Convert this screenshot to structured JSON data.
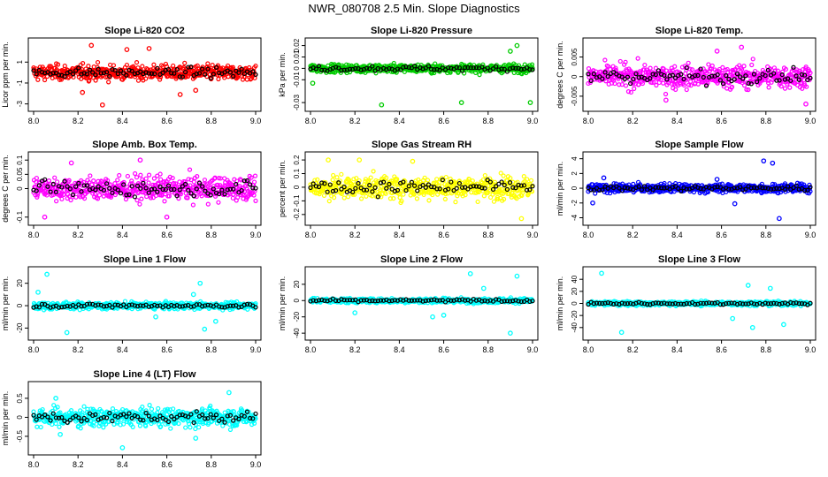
{
  "page": {
    "title": "NWR_080708  2.5 Min. Slope Diagnostics"
  },
  "x_tick_labels": [
    "8.0",
    "8.2",
    "8.4",
    "8.6",
    "8.8",
    "9.0"
  ],
  "chart_data": [
    {
      "type": "scatter",
      "title": "Slope Li-820 CO2",
      "ylabel": "Licor ppm per min.",
      "xlim": [
        8.0,
        9.0
      ],
      "ylim": [
        -3.2,
        2.8
      ],
      "yticks": [
        -3,
        -1,
        1
      ],
      "spread": 0.6,
      "color": "#ff0000",
      "outliers": [
        [
          8.26,
          2.6
        ],
        [
          8.31,
          -3.1
        ],
        [
          8.22,
          -1.9
        ],
        [
          8.52,
          2.3
        ],
        [
          8.66,
          -2.1
        ],
        [
          8.42,
          2.2
        ],
        [
          8.73,
          -1.7
        ]
      ]
    },
    {
      "type": "scatter",
      "title": "Slope Li-820 Pressure",
      "ylabel": "kPa per min.",
      "xlim": [
        8.0,
        9.0
      ],
      "ylim": [
        -0.033,
        0.022
      ],
      "yticks": [
        -0.03,
        -0.01,
        0.0,
        0.01,
        0.02
      ],
      "spread": 0.003,
      "color": "#00cc00",
      "outliers": [
        [
          8.32,
          -0.032
        ],
        [
          8.68,
          -0.03
        ],
        [
          8.93,
          0.02
        ],
        [
          8.99,
          -0.03
        ],
        [
          8.01,
          -0.013
        ],
        [
          8.9,
          0.015
        ]
      ]
    },
    {
      "type": "scatter",
      "title": "Slope Li-820 Temp.",
      "ylabel": "degrees C per min.",
      "xlim": [
        8.0,
        9.0
      ],
      "ylim": [
        -0.0075,
        0.0085
      ],
      "yticks": [
        -0.005,
        0.0,
        0.005
      ],
      "spread": 0.0025,
      "color": "#ff00ff",
      "outliers": [
        [
          8.69,
          0.0075
        ],
        [
          8.98,
          -0.007
        ],
        [
          8.35,
          -0.006
        ],
        [
          8.58,
          0.0065
        ]
      ]
    },
    {
      "type": "scatter",
      "title": "Slope Amb. Box Temp.",
      "ylabel": "degrees C per min.",
      "xlim": [
        8.0,
        9.0
      ],
      "ylim": [
        -0.11,
        0.11
      ],
      "yticks": [
        -0.1,
        0.0,
        0.05,
        0.1
      ],
      "spread": 0.035,
      "color": "#ff00ff",
      "outliers": [
        [
          8.48,
          0.1
        ],
        [
          8.6,
          -0.1
        ],
        [
          8.17,
          0.09
        ],
        [
          8.05,
          -0.1
        ]
      ]
    },
    {
      "type": "scatter",
      "title": "Slope Gas Stream RH",
      "ylabel": "percent per min.",
      "xlim": [
        8.0,
        9.0
      ],
      "ylim": [
        -0.24,
        0.22
      ],
      "yticks": [
        -0.2,
        -0.1,
        0.0,
        0.1,
        0.2
      ],
      "spread": 0.07,
      "color": "#ffff00",
      "outliers": [
        [
          8.95,
          -0.23
        ],
        [
          8.22,
          0.2
        ],
        [
          8.08,
          0.2
        ],
        [
          8.46,
          0.19
        ]
      ]
    },
    {
      "type": "scatter",
      "title": "Slope Sample Flow",
      "ylabel": "ml/min per min.",
      "xlim": [
        8.0,
        9.0
      ],
      "ylim": [
        -4.3,
        4.2
      ],
      "yticks": [
        -4,
        -2,
        0,
        2,
        4
      ],
      "spread": 0.5,
      "color": "#0000ff",
      "outliers": [
        [
          8.79,
          3.7
        ],
        [
          8.83,
          3.4
        ],
        [
          8.86,
          -4.1
        ],
        [
          8.02,
          -2.0
        ],
        [
          8.66,
          -2.1
        ],
        [
          8.07,
          1.4
        ],
        [
          8.58,
          1.2
        ]
      ]
    },
    {
      "type": "scatter",
      "title": "Slope Line 1 Flow",
      "ylabel": "ml/min per min.",
      "xlim": [
        8.0,
        9.0
      ],
      "ylim": [
        -26,
        30
      ],
      "yticks": [
        -20,
        0,
        20
      ],
      "spread": 2.5,
      "color": "#00ffff",
      "outliers": [
        [
          8.06,
          28
        ],
        [
          8.02,
          12
        ],
        [
          8.75,
          20
        ],
        [
          8.77,
          -21
        ],
        [
          8.15,
          -24
        ],
        [
          8.55,
          -10
        ],
        [
          8.72,
          10
        ],
        [
          8.82,
          -14
        ]
      ]
    },
    {
      "type": "scatter",
      "title": "Slope Line 2 Flow",
      "ylabel": "ml/min per min.",
      "xlim": [
        8.0,
        9.0
      ],
      "ylim": [
        -42,
        35
      ],
      "yticks": [
        -40,
        -20,
        0,
        20
      ],
      "spread": 2.5,
      "color": "#00ffff",
      "outliers": [
        [
          8.72,
          33
        ],
        [
          8.9,
          -40
        ],
        [
          8.6,
          -18
        ],
        [
          8.2,
          -15
        ],
        [
          8.78,
          15
        ],
        [
          8.93,
          30
        ],
        [
          8.55,
          -20
        ]
      ]
    },
    {
      "type": "scatter",
      "title": "Slope Line 3 Flow",
      "ylabel": "ml/min per min.",
      "xlim": [
        8.0,
        9.0
      ],
      "ylim": [
        -52,
        52
      ],
      "yticks": [
        -40,
        -20,
        0,
        20,
        40
      ],
      "spread": 3,
      "color": "#00ffff",
      "outliers": [
        [
          8.06,
          50
        ],
        [
          8.15,
          -48
        ],
        [
          8.72,
          30
        ],
        [
          8.74,
          -40
        ],
        [
          8.88,
          -35
        ],
        [
          8.82,
          25
        ],
        [
          8.65,
          -25
        ]
      ]
    },
    {
      "type": "scatter",
      "title": "Slope Line 4 (LT) Flow",
      "ylabel": "ml/min per min.",
      "xlim": [
        8.0,
        9.0
      ],
      "ylim": [
        -0.85,
        0.8
      ],
      "yticks": [
        -0.5,
        0.0,
        0.5
      ],
      "spread": 0.2,
      "color": "#00ffff",
      "outliers": [
        [
          8.88,
          0.65
        ],
        [
          8.4,
          -0.8
        ],
        [
          8.73,
          -0.55
        ],
        [
          8.1,
          0.5
        ],
        [
          8.12,
          -0.45
        ]
      ]
    }
  ]
}
